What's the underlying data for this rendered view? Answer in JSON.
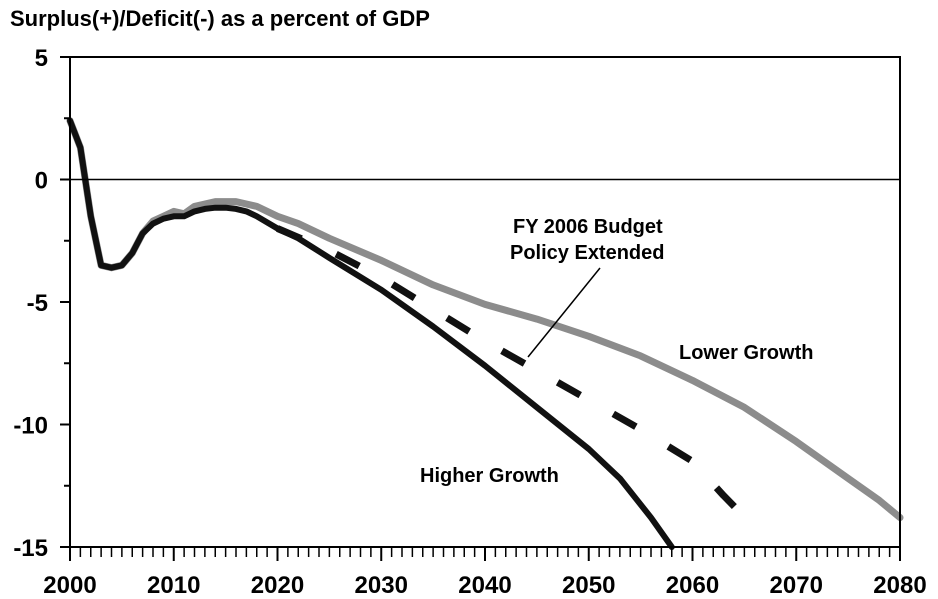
{
  "chart_data": {
    "type": "line",
    "title": "Surplus(+)/Deficit(-) as a percent of GDP",
    "xlabel": "",
    "ylabel": "",
    "xlim": [
      2000,
      2080
    ],
    "ylim": [
      -15,
      5
    ],
    "x_ticks": [
      2000,
      2010,
      2020,
      2030,
      2040,
      2050,
      2060,
      2070,
      2080
    ],
    "y_ticks": [
      5,
      0,
      -5,
      -10,
      -15
    ],
    "grid": false,
    "zero_line": true,
    "series": [
      {
        "name": "Lower Growth",
        "color": "#8c8c8c",
        "style": "solid",
        "points": [
          [
            2000,
            2.4
          ],
          [
            2001,
            1.3
          ],
          [
            2002,
            -1.5
          ],
          [
            2003,
            -3.5
          ],
          [
            2004,
            -3.6
          ],
          [
            2005,
            -3.5
          ],
          [
            2006,
            -3.0
          ],
          [
            2007,
            -2.2
          ],
          [
            2008,
            -1.7
          ],
          [
            2009,
            -1.5
          ],
          [
            2010,
            -1.3
          ],
          [
            2011,
            -1.4
          ],
          [
            2012,
            -1.1
          ],
          [
            2013,
            -1.0
          ],
          [
            2014,
            -0.9
          ],
          [
            2015,
            -0.9
          ],
          [
            2016,
            -0.9
          ],
          [
            2017,
            -1.0
          ],
          [
            2018,
            -1.1
          ],
          [
            2020,
            -1.5
          ],
          [
            2022,
            -1.8
          ],
          [
            2025,
            -2.4
          ],
          [
            2030,
            -3.3
          ],
          [
            2035,
            -4.3
          ],
          [
            2040,
            -5.1
          ],
          [
            2045,
            -5.7
          ],
          [
            2050,
            -6.4
          ],
          [
            2055,
            -7.2
          ],
          [
            2060,
            -8.2
          ],
          [
            2065,
            -9.3
          ],
          [
            2070,
            -10.7
          ],
          [
            2075,
            -12.2
          ],
          [
            2078,
            -13.1
          ],
          [
            2080,
            -13.8
          ]
        ]
      },
      {
        "name": "Higher Growth",
        "color": "#111111",
        "style": "solid",
        "points": [
          [
            2000,
            2.4
          ],
          [
            2001,
            1.3
          ],
          [
            2002,
            -1.5
          ],
          [
            2003,
            -3.5
          ],
          [
            2004,
            -3.6
          ],
          [
            2005,
            -3.5
          ],
          [
            2006,
            -3.0
          ],
          [
            2007,
            -2.2
          ],
          [
            2008,
            -1.8
          ],
          [
            2009,
            -1.6
          ],
          [
            2010,
            -1.5
          ],
          [
            2011,
            -1.5
          ],
          [
            2012,
            -1.3
          ],
          [
            2013,
            -1.2
          ],
          [
            2014,
            -1.15
          ],
          [
            2015,
            -1.15
          ],
          [
            2016,
            -1.2
          ],
          [
            2017,
            -1.3
          ],
          [
            2018,
            -1.5
          ],
          [
            2020,
            -2.0
          ],
          [
            2022,
            -2.4
          ],
          [
            2025,
            -3.2
          ],
          [
            2030,
            -4.5
          ],
          [
            2035,
            -6.0
          ],
          [
            2040,
            -7.6
          ],
          [
            2045,
            -9.3
          ],
          [
            2050,
            -11.0
          ],
          [
            2053,
            -12.2
          ],
          [
            2056,
            -13.8
          ],
          [
            2058,
            -15.0
          ]
        ]
      },
      {
        "name": "FY 2006 Budget Policy Extended",
        "color": "#111111",
        "style": "dashed",
        "points": [
          [
            2020,
            -2.0
          ],
          [
            2025,
            -2.9
          ],
          [
            2030,
            -4.0
          ],
          [
            2035,
            -5.3
          ],
          [
            2040,
            -6.6
          ],
          [
            2045,
            -7.8
          ],
          [
            2050,
            -9.0
          ],
          [
            2055,
            -10.2
          ],
          [
            2060,
            -11.5
          ],
          [
            2063,
            -12.9
          ],
          [
            2066,
            -14.2
          ]
        ]
      }
    ],
    "annotations": {
      "policy_label_line1": "FY 2006 Budget",
      "policy_label_line2": "Policy Extended",
      "lower_growth": "Lower Growth",
      "higher_growth": "Higher Growth"
    }
  }
}
